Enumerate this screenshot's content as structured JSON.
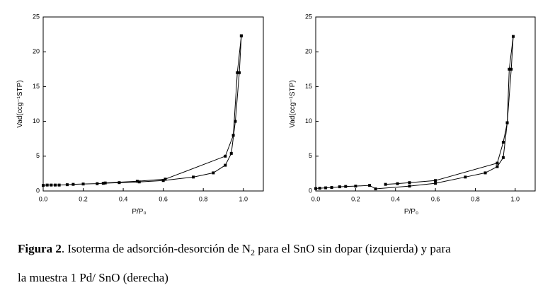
{
  "chart_data": [
    {
      "type": "line",
      "y_label": "Vad(ccg⁻¹STP)",
      "x_label": "P/P₀",
      "xlim": [
        0,
        1.1
      ],
      "ylim": [
        0,
        25
      ],
      "xticks": [
        {
          "value": 0,
          "label": "0.0"
        },
        0.2,
        0.4,
        0.6,
        0.8,
        {
          "value": 1,
          "label": "1.0"
        }
      ],
      "yticks": [
        0,
        5,
        10,
        15,
        20,
        25
      ],
      "series": [
        {
          "color": "#000000",
          "x": [
            0,
            0.02,
            0.04,
            0.06,
            0.08,
            0.12,
            0.15,
            0.2,
            0.27,
            0.3,
            0.38,
            0.48,
            0.6,
            0.75,
            0.85,
            0.91,
            0.94,
            0.96,
            0.98,
            0.99
          ],
          "values": [
            0.8,
            0.85,
            0.85,
            0.85,
            0.85,
            0.9,
            0.95,
            1.0,
            1.05,
            1.1,
            1.2,
            1.3,
            1.5,
            2.0,
            2.6,
            3.7,
            5.4,
            10.0,
            17.0,
            22.3
          ]
        },
        {
          "color": "#000000",
          "x": [
            0.99,
            0.97,
            0.95,
            0.91,
            0.61,
            0.47,
            0.31
          ],
          "values": [
            22.3,
            17.0,
            8.0,
            5.0,
            1.7,
            1.4,
            1.15
          ]
        }
      ]
    },
    {
      "type": "line",
      "y_label": "Vad(ccg⁻¹STP)",
      "x_label": "P/P₀",
      "xlim": [
        0,
        1.1
      ],
      "ylim": [
        0,
        25
      ],
      "xticks": [
        {
          "value": 0,
          "label": "0.0"
        },
        0.2,
        0.4,
        0.6,
        0.8,
        {
          "value": 1,
          "label": "1.0"
        }
      ],
      "yticks": [
        0,
        5,
        10,
        15,
        20,
        25
      ],
      "series": [
        {
          "color": "#000000",
          "x": [
            0,
            0.02,
            0.05,
            0.08,
            0.12,
            0.15,
            0.2,
            0.27,
            0.3,
            0.47,
            0.6,
            0.75,
            0.85,
            0.91,
            0.94,
            0.96,
            0.98,
            0.99
          ],
          "values": [
            0.35,
            0.4,
            0.45,
            0.5,
            0.6,
            0.65,
            0.7,
            0.8,
            0.3,
            0.7,
            1.1,
            2.0,
            2.6,
            3.5,
            4.8,
            9.8,
            17.5,
            22.2
          ]
        },
        {
          "color": "#000000",
          "x": [
            0.99,
            0.97,
            0.96,
            0.94,
            0.91,
            0.6,
            0.47,
            0.41,
            0.35
          ],
          "values": [
            22.2,
            17.5,
            9.8,
            7.0,
            4.0,
            1.5,
            1.2,
            1.05,
            0.95
          ]
        }
      ]
    }
  ],
  "caption": {
    "label": "Figura 2",
    "text1": ". Isoterma de adsorción-desorción de N",
    "subscript": "2",
    "text2": " para el SnO sin dopar (izquierda) y para",
    "line2": "la muestra 1 Pd/ SnO (derecha)"
  }
}
